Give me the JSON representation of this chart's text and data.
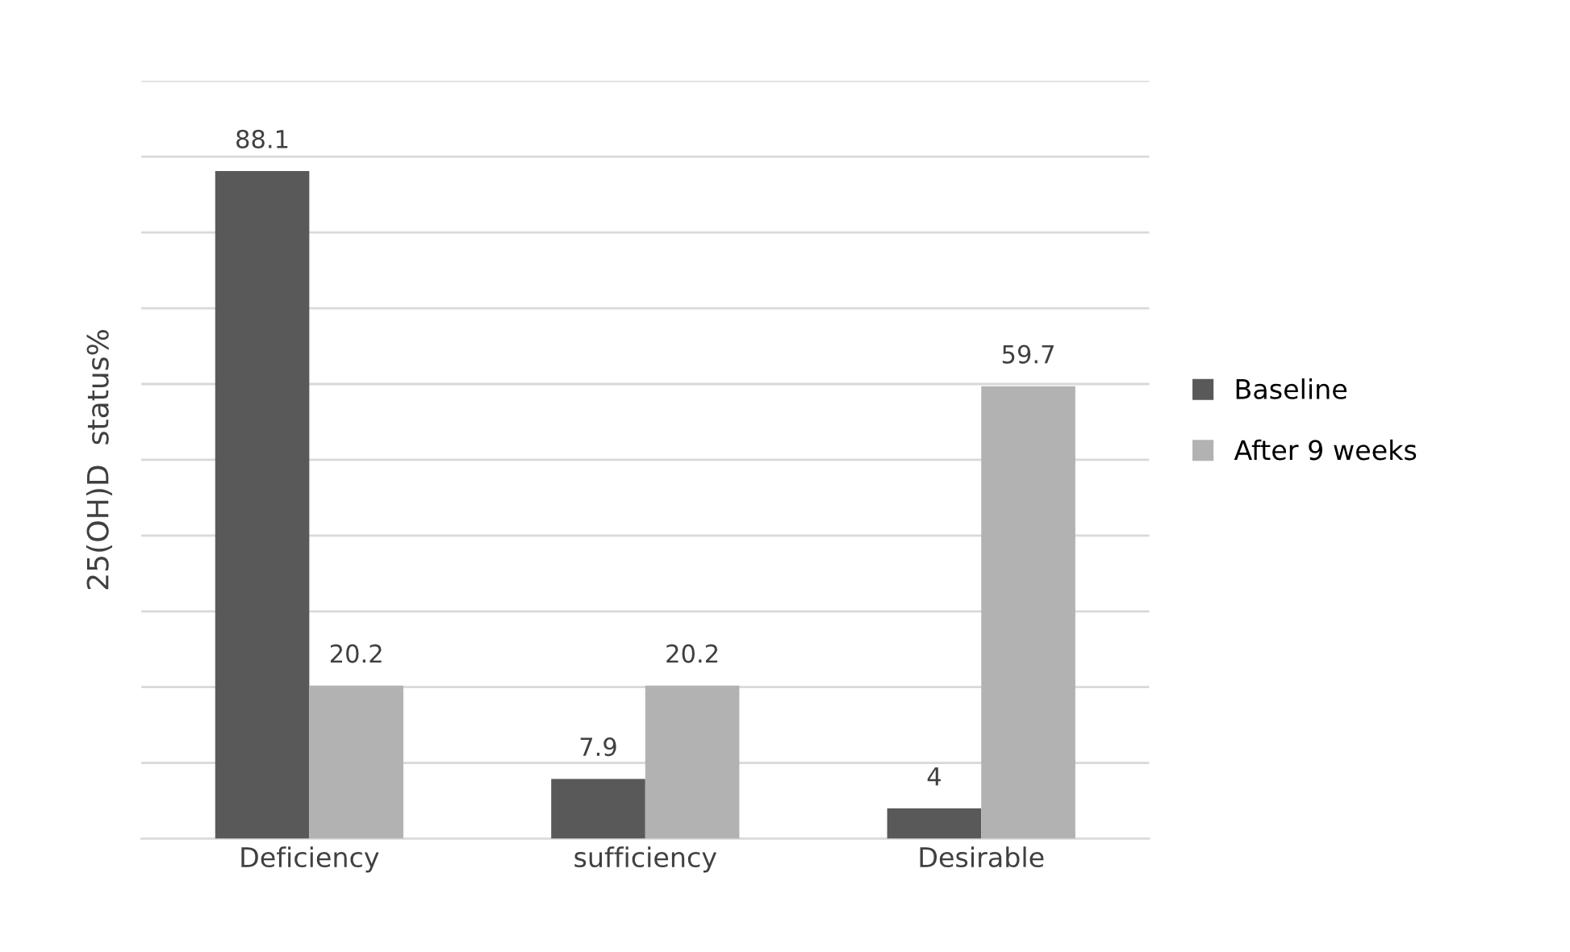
{
  "chart_data": {
    "type": "bar",
    "ylabel": "25(OH)D  status%",
    "categories": [
      "Deficiency",
      "sufficiency",
      "Desirable"
    ],
    "series": [
      {
        "name": "Baseline",
        "color": "#595959",
        "values": [
          88.1,
          7.9,
          4
        ]
      },
      {
        "name": "After 9 weeks",
        "color": "#b2b2b2",
        "values": [
          20.2,
          20.2,
          59.7
        ]
      }
    ],
    "ylim": [
      0,
      100
    ],
    "yticks": [
      {
        "value": 0,
        "label": null
      },
      {
        "value": 10,
        "label": null
      },
      {
        "value": 20,
        "label": null
      },
      {
        "value": 30,
        "label": null
      },
      {
        "value": 40,
        "label": null
      },
      {
        "value": 50,
        "label": null
      },
      {
        "value": 60,
        "label": null
      },
      {
        "value": 70,
        "label": null
      },
      {
        "value": 80,
        "label": null
      },
      {
        "value": 90,
        "label": null
      },
      {
        "value": 100,
        "label": null
      }
    ],
    "grid": "y",
    "legend": "right",
    "data_labels": true,
    "tick_labels": "x"
  }
}
